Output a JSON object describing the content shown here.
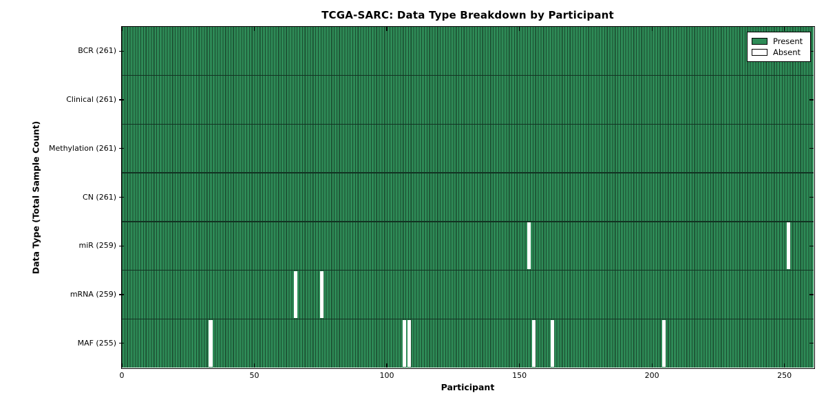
{
  "chart_data": {
    "type": "heatmap",
    "title": "TCGA-SARC: Data Type Breakdown by Participant",
    "xlabel": "Participant",
    "ylabel": "Data Type (Total Sample Count)",
    "n_participants": 261,
    "x_ticks": [
      0,
      50,
      100,
      150,
      200,
      250
    ],
    "x_range": [
      0,
      261
    ],
    "grid": false,
    "legend_position": "upper right",
    "rows": [
      {
        "label": "BCR (261)",
        "data_type": "BCR",
        "present_count": 261,
        "absent_participants": []
      },
      {
        "label": "Clinical (261)",
        "data_type": "Clinical",
        "present_count": 261,
        "absent_participants": []
      },
      {
        "label": "Methylation (261)",
        "data_type": "Methylation",
        "present_count": 261,
        "absent_participants": []
      },
      {
        "label": "CN (261)",
        "data_type": "CN",
        "present_count": 261,
        "absent_participants": []
      },
      {
        "label": "miR (259)",
        "data_type": "miR",
        "present_count": 259,
        "absent_participants": [
          153,
          251
        ]
      },
      {
        "label": "mRNA (259)",
        "data_type": "mRNA",
        "present_count": 259,
        "absent_participants": [
          65,
          75
        ]
      },
      {
        "label": "MAF (255)",
        "data_type": "MAF",
        "present_count": 255,
        "absent_participants": [
          33,
          106,
          108,
          155,
          162,
          204
        ]
      }
    ],
    "legend": [
      {
        "label": "Present",
        "color": "#2e8b57"
      },
      {
        "label": "Absent",
        "color": "#ffffff"
      }
    ],
    "colors": {
      "present_fill": "#2e8b57",
      "bar_edge": "#1a4a2e",
      "row_separator": "#123322",
      "absent_fill": "#ffffff",
      "spine": "#000000",
      "background": "#ffffff"
    }
  }
}
